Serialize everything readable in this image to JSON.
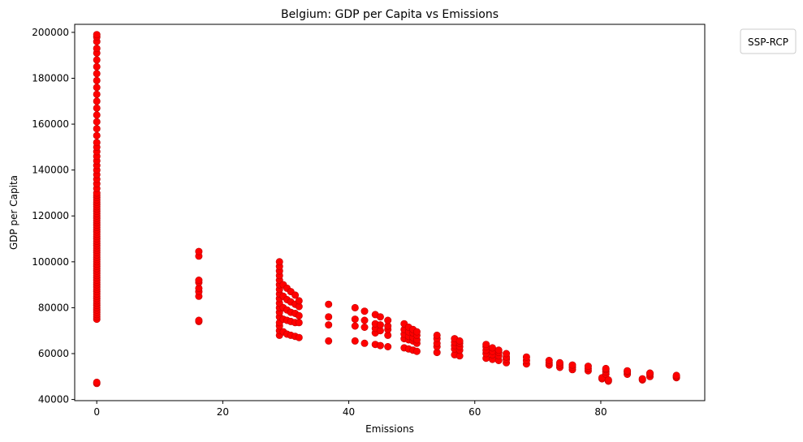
{
  "chart_data": {
    "type": "scatter",
    "title": "Belgium: GDP per Capita vs Emissions",
    "xlabel": "Emissions",
    "ylabel": "GDP per Capita",
    "xlim": [
      -3.5,
      96.5
    ],
    "ylim": [
      39500,
      203500
    ],
    "xticks": [
      0,
      20,
      40,
      60,
      80
    ],
    "yticks": [
      40000,
      60000,
      80000,
      100000,
      120000,
      140000,
      160000,
      180000,
      200000
    ],
    "grid": false,
    "legend": {
      "title": "SSP-RCP",
      "placement": "outside-top-right"
    },
    "marker_color": "#ff0000",
    "marker_edge_color": "#c00000",
    "series": [
      {
        "points": [
          [
            0,
            47000
          ],
          [
            0,
            47500
          ],
          [
            0,
            75000
          ],
          [
            0,
            76000
          ],
          [
            0,
            77000
          ],
          [
            0,
            78000
          ],
          [
            0,
            79000
          ],
          [
            0,
            80000
          ],
          [
            0,
            81000
          ],
          [
            0,
            82000
          ],
          [
            0,
            83000
          ],
          [
            0,
            84000
          ],
          [
            0,
            85000
          ],
          [
            0,
            86000
          ],
          [
            0,
            87000
          ],
          [
            0,
            88000
          ],
          [
            0,
            89000
          ],
          [
            0,
            90000
          ],
          [
            0,
            91000
          ],
          [
            0,
            92000
          ],
          [
            0,
            93000
          ],
          [
            0,
            94000
          ],
          [
            0,
            95000
          ],
          [
            0,
            96000
          ],
          [
            0,
            97000
          ],
          [
            0,
            98000
          ],
          [
            0,
            99000
          ],
          [
            0,
            100000
          ],
          [
            0,
            101000
          ],
          [
            0,
            102000
          ],
          [
            0,
            103000
          ],
          [
            0,
            104000
          ],
          [
            0,
            105000
          ],
          [
            0,
            106000
          ],
          [
            0,
            107000
          ],
          [
            0,
            108000
          ],
          [
            0,
            109000
          ],
          [
            0,
            110000
          ],
          [
            0,
            111000
          ],
          [
            0,
            112000
          ],
          [
            0,
            113000
          ],
          [
            0,
            114000
          ],
          [
            0,
            115000
          ],
          [
            0,
            116000
          ],
          [
            0,
            117000
          ],
          [
            0,
            118000
          ],
          [
            0,
            119000
          ],
          [
            0,
            120000
          ],
          [
            0,
            121000
          ],
          [
            0,
            122000
          ],
          [
            0,
            123000
          ],
          [
            0,
            124000
          ],
          [
            0,
            125000
          ],
          [
            0,
            126000
          ],
          [
            0,
            127000
          ],
          [
            0,
            128000
          ],
          [
            0,
            129000
          ],
          [
            0,
            130000
          ],
          [
            0,
            132000
          ],
          [
            0,
            134000
          ],
          [
            0,
            136000
          ],
          [
            0,
            138000
          ],
          [
            0,
            140000
          ],
          [
            0,
            142000
          ],
          [
            0,
            144000
          ],
          [
            0,
            146000
          ],
          [
            0,
            148000
          ],
          [
            0,
            150000
          ],
          [
            0,
            152000
          ],
          [
            0,
            155000
          ],
          [
            0,
            158000
          ],
          [
            0,
            161000
          ],
          [
            0,
            164000
          ],
          [
            0,
            167000
          ],
          [
            0,
            170000
          ],
          [
            0,
            173000
          ],
          [
            0,
            176000
          ],
          [
            0,
            179000
          ],
          [
            0,
            182000
          ],
          [
            0,
            185000
          ],
          [
            0,
            188000
          ],
          [
            0,
            191000
          ],
          [
            0,
            193000
          ],
          [
            0,
            196000
          ],
          [
            0,
            198000
          ],
          [
            0,
            199000
          ],
          [
            16.2,
            74000
          ],
          [
            16.2,
            74500
          ],
          [
            16.2,
            85000
          ],
          [
            16.2,
            87000
          ],
          [
            16.2,
            88500
          ],
          [
            16.2,
            91000
          ],
          [
            16.2,
            92000
          ],
          [
            16.2,
            102500
          ],
          [
            16.2,
            104500
          ],
          [
            29,
            68000
          ],
          [
            29,
            70000
          ],
          [
            29,
            72000
          ],
          [
            29,
            73500
          ],
          [
            29,
            76000
          ],
          [
            29,
            78000
          ],
          [
            29,
            80000
          ],
          [
            29,
            82000
          ],
          [
            29,
            84000
          ],
          [
            29,
            86000
          ],
          [
            29,
            88000
          ],
          [
            29,
            90000
          ],
          [
            29,
            92000
          ],
          [
            29,
            94000
          ],
          [
            29,
            96000
          ],
          [
            29,
            98000
          ],
          [
            29,
            100000
          ],
          [
            29.6,
            69500
          ],
          [
            29.6,
            75000
          ],
          [
            29.6,
            80000
          ],
          [
            29.6,
            85000
          ],
          [
            29.6,
            90000
          ],
          [
            30.2,
            68500
          ],
          [
            30.2,
            74500
          ],
          [
            30.2,
            79000
          ],
          [
            30.2,
            83500
          ],
          [
            30.2,
            88500
          ],
          [
            30.8,
            68000
          ],
          [
            30.8,
            74000
          ],
          [
            30.8,
            78000
          ],
          [
            30.8,
            82500
          ],
          [
            30.8,
            87000
          ],
          [
            31.5,
            67500
          ],
          [
            31.5,
            73500
          ],
          [
            31.5,
            77500
          ],
          [
            31.5,
            81500
          ],
          [
            31.5,
            85500
          ],
          [
            32.1,
            67000
          ],
          [
            32.1,
            73500
          ],
          [
            32.1,
            76500
          ],
          [
            32.1,
            80500
          ],
          [
            32.1,
            83000
          ],
          [
            36.8,
            65500
          ],
          [
            36.8,
            72500
          ],
          [
            36.8,
            76000
          ],
          [
            36.8,
            81500
          ],
          [
            41,
            65500
          ],
          [
            41,
            72000
          ],
          [
            41,
            75000
          ],
          [
            41,
            80000
          ],
          [
            42.5,
            64500
          ],
          [
            42.5,
            71500
          ],
          [
            42.5,
            74500
          ],
          [
            42.5,
            78500
          ],
          [
            44.2,
            64000
          ],
          [
            44.2,
            69000
          ],
          [
            44.2,
            71000
          ],
          [
            44.2,
            73000
          ],
          [
            44.2,
            77000
          ],
          [
            45,
            63500
          ],
          [
            45,
            70000
          ],
          [
            45,
            72500
          ],
          [
            45,
            76000
          ],
          [
            46.2,
            63000
          ],
          [
            46.2,
            68000
          ],
          [
            46.2,
            70500
          ],
          [
            46.2,
            72000
          ],
          [
            46.2,
            74500
          ],
          [
            48.8,
            62500
          ],
          [
            48.8,
            66500
          ],
          [
            48.8,
            68500
          ],
          [
            48.8,
            70500
          ],
          [
            48.8,
            73000
          ],
          [
            49.5,
            62000
          ],
          [
            49.5,
            66000
          ],
          [
            49.5,
            67500
          ],
          [
            49.5,
            69500
          ],
          [
            49.5,
            71500
          ],
          [
            50.2,
            61500
          ],
          [
            50.2,
            65500
          ],
          [
            50.2,
            67000
          ],
          [
            50.2,
            69000
          ],
          [
            50.2,
            70500
          ],
          [
            50.8,
            61000
          ],
          [
            50.8,
            64500
          ],
          [
            50.8,
            66000
          ],
          [
            50.8,
            68000
          ],
          [
            50.8,
            69500
          ],
          [
            54,
            60500
          ],
          [
            54,
            63000
          ],
          [
            54,
            64500
          ],
          [
            54,
            66500
          ],
          [
            54,
            68000
          ],
          [
            56.8,
            59500
          ],
          [
            56.8,
            62000
          ],
          [
            56.8,
            63500
          ],
          [
            56.8,
            65000
          ],
          [
            56.8,
            66500
          ],
          [
            57.6,
            59000
          ],
          [
            57.6,
            61500
          ],
          [
            57.6,
            63000
          ],
          [
            57.6,
            64500
          ],
          [
            57.6,
            65500
          ],
          [
            61.8,
            58000
          ],
          [
            61.8,
            60000
          ],
          [
            61.8,
            61500
          ],
          [
            61.8,
            63000
          ],
          [
            61.8,
            64000
          ],
          [
            62.8,
            57500
          ],
          [
            62.8,
            59500
          ],
          [
            62.8,
            61000
          ],
          [
            62.8,
            62500
          ],
          [
            63.8,
            57000
          ],
          [
            63.8,
            59000
          ],
          [
            63.8,
            60500
          ],
          [
            63.8,
            61500
          ],
          [
            65,
            56000
          ],
          [
            65,
            57500
          ],
          [
            65,
            58500
          ],
          [
            65,
            60000
          ],
          [
            68.2,
            55500
          ],
          [
            68.2,
            57000
          ],
          [
            68.2,
            58500
          ],
          [
            71.8,
            55000
          ],
          [
            71.8,
            56000
          ],
          [
            71.8,
            57000
          ],
          [
            73.5,
            54000
          ],
          [
            73.5,
            55000
          ],
          [
            73.5,
            56000
          ],
          [
            75.5,
            53000
          ],
          [
            75.5,
            54000
          ],
          [
            75.5,
            55000
          ],
          [
            78,
            52500
          ],
          [
            78,
            53500
          ],
          [
            78,
            54500
          ],
          [
            80.2,
            49000
          ],
          [
            80.2,
            49500
          ],
          [
            80.8,
            51000
          ],
          [
            80.8,
            52000
          ],
          [
            80.8,
            53000
          ],
          [
            80.8,
            53500
          ],
          [
            81.2,
            48000
          ],
          [
            81.2,
            48500
          ],
          [
            84.2,
            51000
          ],
          [
            84.2,
            52000
          ],
          [
            84.2,
            52500
          ],
          [
            86.6,
            48500
          ],
          [
            86.6,
            49000
          ],
          [
            87.8,
            50000
          ],
          [
            87.8,
            51000
          ],
          [
            87.8,
            51500
          ],
          [
            92,
            49500
          ],
          [
            92,
            50000
          ],
          [
            92,
            50500
          ]
        ]
      }
    ]
  }
}
